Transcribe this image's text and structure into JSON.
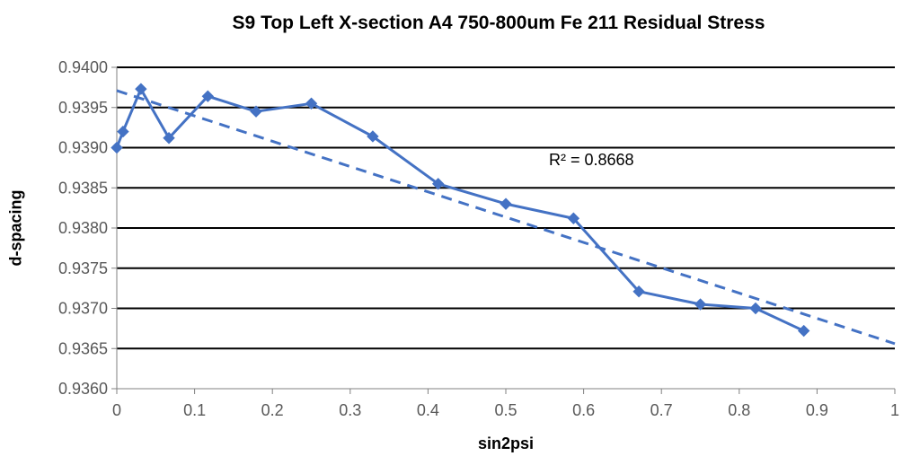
{
  "chart_data": {
    "type": "line",
    "title": "S9 Top Left X-section A4 750-800um Fe 211 Residual Stress",
    "xlabel": "sin2psi",
    "ylabel": "d-spacing",
    "xlim": [
      0,
      1
    ],
    "ylim": [
      0.936,
      0.94
    ],
    "x_ticks": [
      "0",
      "0.1",
      "0.2",
      "0.3",
      "0.4",
      "0.5",
      "0.6",
      "0.7",
      "0.8",
      "0.9",
      "1"
    ],
    "y_ticks": [
      "0.9360",
      "0.9365",
      "0.9370",
      "0.9375",
      "0.9380",
      "0.9385",
      "0.9390",
      "0.9395",
      "0.9400"
    ],
    "grid": "horizontal",
    "series": [
      {
        "color": "#4472C4",
        "marker": "diamond",
        "x": [
          0,
          0.008,
          0.031,
          0.067,
          0.117,
          0.179,
          0.25,
          0.329,
          0.413,
          0.5,
          0.587,
          0.671,
          0.75,
          0.821,
          0.883
        ],
        "y": [
          0.939,
          0.9392,
          0.93973,
          0.93912,
          0.93964,
          0.93945,
          0.93955,
          0.93914,
          0.93855,
          0.9383,
          0.93812,
          0.93721,
          0.93705,
          0.937,
          0.93672
        ]
      }
    ],
    "trendline": {
      "type": "linear",
      "style": "dashed",
      "color": "#4472C4",
      "x": [
        0,
        1
      ],
      "y": [
        0.93971,
        0.93656
      ]
    },
    "annotations": [
      {
        "text": "R² = 0.8668",
        "x": 0.61,
        "y": 0.93878
      }
    ]
  }
}
